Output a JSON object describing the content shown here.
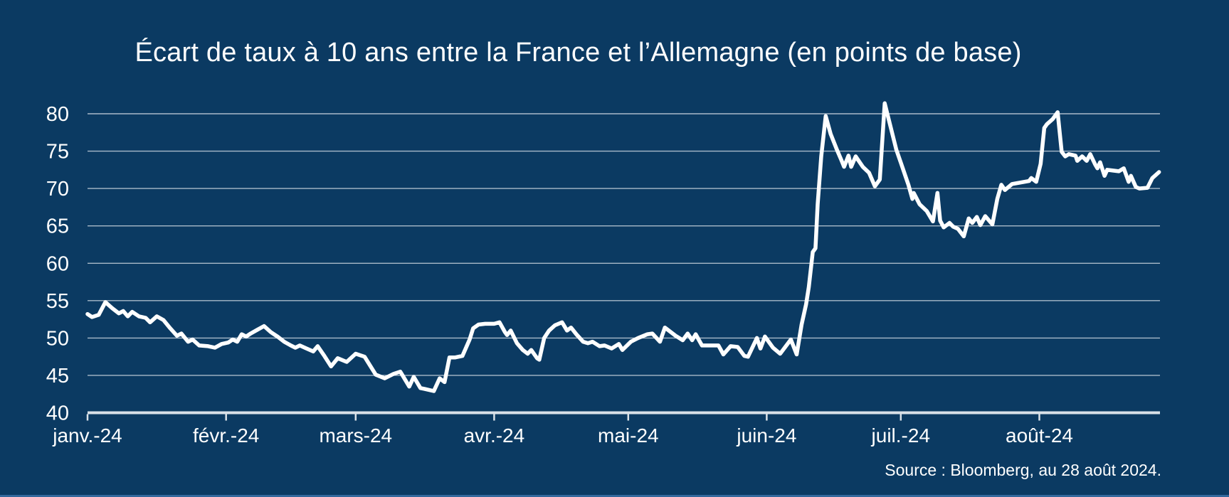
{
  "title": "Écart de taux à 10 ans entre la France et l’Allemagne (en points de base)",
  "source": "Source : Bloomberg, au 28 août 2024.",
  "colors": {
    "background": "#0b3a62",
    "line": "#ffffff",
    "gridline": "#a9bac9",
    "axis": "#d9e1e8",
    "text": "#ffffff",
    "bottom_strip": "#33689c"
  },
  "chart_data": {
    "type": "line",
    "title": "Écart de taux à 10 ans entre la France et l’Allemagne (en points de base)",
    "xlabel": "",
    "ylabel": "points de base",
    "grid": true,
    "legend": "none",
    "x_axis": {
      "tick_labels": [
        "janv.-24",
        "févr.-24",
        "mars-24",
        "avr.-24",
        "mai-24",
        "juin-24",
        "juil.-24",
        "août-24"
      ],
      "tick_day_offsets": [
        0,
        31,
        60,
        91,
        121,
        152,
        182,
        213
      ],
      "range_days": [
        0,
        240
      ]
    },
    "y_axis": {
      "ticks": [
        40,
        45,
        50,
        55,
        60,
        65,
        70,
        75,
        80
      ],
      "range": [
        40,
        80
      ]
    },
    "series": [
      {
        "color": "#ffffff",
        "points": [
          [
            0,
            53.2
          ],
          [
            1,
            52.8
          ],
          [
            2.5,
            53.1
          ],
          [
            4,
            54.8
          ],
          [
            5.5,
            54.0
          ],
          [
            7,
            53.3
          ],
          [
            8,
            53.6
          ],
          [
            9,
            52.9
          ],
          [
            10,
            53.5
          ],
          [
            11.5,
            52.9
          ],
          [
            13,
            52.7
          ],
          [
            14,
            52.1
          ],
          [
            15.5,
            52.9
          ],
          [
            17,
            52.4
          ],
          [
            18.5,
            51.3
          ],
          [
            20,
            50.3
          ],
          [
            21,
            50.6
          ],
          [
            22.5,
            49.5
          ],
          [
            23.5,
            49.8
          ],
          [
            25,
            49.0
          ],
          [
            27,
            48.9
          ],
          [
            28.5,
            48.7
          ],
          [
            30,
            49.2
          ],
          [
            31.5,
            49.4
          ],
          [
            32.5,
            49.8
          ],
          [
            33.5,
            49.5
          ],
          [
            34.5,
            50.5
          ],
          [
            35.5,
            50.2
          ],
          [
            36.5,
            50.6
          ],
          [
            38,
            51.1
          ],
          [
            39.5,
            51.6
          ],
          [
            41,
            50.8
          ],
          [
            42.5,
            50.2
          ],
          [
            44,
            49.5
          ],
          [
            45.5,
            49.0
          ],
          [
            46.5,
            48.7
          ],
          [
            47.5,
            49.0
          ],
          [
            49,
            48.6
          ],
          [
            50.5,
            48.2
          ],
          [
            51.5,
            48.9
          ],
          [
            53,
            47.6
          ],
          [
            54.5,
            46.2
          ],
          [
            56,
            47.3
          ],
          [
            58,
            46.8
          ],
          [
            60,
            47.9
          ],
          [
            62,
            47.5
          ],
          [
            64.5,
            45.1
          ],
          [
            66.5,
            44.6
          ],
          [
            68.5,
            45.2
          ],
          [
            70,
            45.5
          ],
          [
            72,
            43.5
          ],
          [
            73,
            44.8
          ],
          [
            74.5,
            43.3
          ],
          [
            75.4,
            43.2
          ],
          [
            77.5,
            42.9
          ],
          [
            78.8,
            44.6
          ],
          [
            79.9,
            44.1
          ],
          [
            81,
            47.4
          ],
          [
            82.3,
            47.4
          ],
          [
            83.9,
            47.6
          ],
          [
            85.5,
            49.8
          ],
          [
            86.3,
            51.3
          ],
          [
            87.5,
            51.8
          ],
          [
            89,
            51.9
          ],
          [
            91,
            51.9
          ],
          [
            92.2,
            52.1
          ],
          [
            93.4,
            50.8
          ],
          [
            93.9,
            50.4
          ],
          [
            94.7,
            51.0
          ],
          [
            96.1,
            49.3
          ],
          [
            97.4,
            48.4
          ],
          [
            98.5,
            47.9
          ],
          [
            99.3,
            48.4
          ],
          [
            100.6,
            47.3
          ],
          [
            101.1,
            47.1
          ],
          [
            102.2,
            50.0
          ],
          [
            103.3,
            51.0
          ],
          [
            104.6,
            51.7
          ],
          [
            106.2,
            52.1
          ],
          [
            107.3,
            51.0
          ],
          [
            108.2,
            51.4
          ],
          [
            109.4,
            50.5
          ],
          [
            110.9,
            49.5
          ],
          [
            112,
            49.3
          ],
          [
            113,
            49.5
          ],
          [
            114.6,
            48.9
          ],
          [
            115.7,
            49.0
          ],
          [
            117.3,
            48.6
          ],
          [
            118.9,
            49.2
          ],
          [
            119.7,
            48.4
          ],
          [
            121.6,
            49.5
          ],
          [
            123.2,
            50.0
          ],
          [
            125.3,
            50.5
          ],
          [
            126.4,
            50.6
          ],
          [
            128.1,
            49.5
          ],
          [
            129.2,
            51.4
          ],
          [
            131.6,
            50.3
          ],
          [
            133.2,
            49.7
          ],
          [
            134.3,
            50.6
          ],
          [
            135.3,
            49.7
          ],
          [
            136.1,
            50.5
          ],
          [
            137.5,
            49.0
          ],
          [
            141.2,
            49.0
          ],
          [
            142.3,
            47.8
          ],
          [
            143.9,
            48.9
          ],
          [
            145.5,
            48.8
          ],
          [
            147,
            47.6
          ],
          [
            147.8,
            47.5
          ],
          [
            149.8,
            50.0
          ],
          [
            150.6,
            48.6
          ],
          [
            151.6,
            50.2
          ],
          [
            153.4,
            48.7
          ],
          [
            155,
            47.9
          ],
          [
            157.4,
            49.8
          ],
          [
            158.7,
            47.8
          ],
          [
            159.8,
            51.8
          ],
          [
            160.8,
            54.5
          ],
          [
            161.4,
            56.8
          ],
          [
            161.9,
            59.4
          ],
          [
            162.3,
            61.5
          ],
          [
            162.9,
            62.0
          ],
          [
            163.4,
            67.9
          ],
          [
            164.2,
            74.3
          ],
          [
            165.2,
            79.7
          ],
          [
            166.3,
            77.3
          ],
          [
            167.7,
            75.2
          ],
          [
            168.7,
            73.8
          ],
          [
            169.3,
            72.9
          ],
          [
            170.3,
            74.4
          ],
          [
            170.9,
            72.9
          ],
          [
            171.9,
            74.3
          ],
          [
            173.5,
            72.9
          ],
          [
            174.9,
            72.1
          ],
          [
            176.2,
            70.3
          ],
          [
            177.3,
            71.2
          ],
          [
            178.4,
            81.4
          ],
          [
            180.2,
            77.1
          ],
          [
            181,
            75.2
          ],
          [
            182.1,
            73.3
          ],
          [
            183.7,
            70.5
          ],
          [
            184.6,
            68.6
          ],
          [
            184.9,
            69.4
          ],
          [
            186.2,
            67.9
          ],
          [
            187.8,
            67.0
          ],
          [
            189.2,
            65.6
          ],
          [
            190.2,
            69.4
          ],
          [
            190.8,
            65.7
          ],
          [
            191.6,
            64.8
          ],
          [
            192.9,
            65.4
          ],
          [
            193.7,
            64.9
          ],
          [
            194.8,
            64.6
          ],
          [
            196.1,
            63.6
          ],
          [
            197.2,
            66.0
          ],
          [
            198,
            65.4
          ],
          [
            199,
            66.2
          ],
          [
            199.8,
            65.1
          ],
          [
            200.9,
            66.3
          ],
          [
            202.5,
            65.2
          ],
          [
            203.6,
            68.6
          ],
          [
            204.5,
            70.5
          ],
          [
            205.3,
            69.8
          ],
          [
            206.9,
            70.6
          ],
          [
            208.8,
            70.8
          ],
          [
            210.7,
            71.0
          ],
          [
            211.2,
            71.4
          ],
          [
            212.3,
            70.9
          ],
          [
            213.3,
            73.3
          ],
          [
            214.1,
            78.1
          ],
          [
            214.7,
            78.6
          ],
          [
            216,
            79.3
          ],
          [
            217.1,
            80.2
          ],
          [
            218,
            74.9
          ],
          [
            218.8,
            74.3
          ],
          [
            219.6,
            74.6
          ],
          [
            221.1,
            74.4
          ],
          [
            221.5,
            73.7
          ],
          [
            222.6,
            74.3
          ],
          [
            223.6,
            73.7
          ],
          [
            224.4,
            74.6
          ],
          [
            225.5,
            73.2
          ],
          [
            226,
            72.7
          ],
          [
            226.6,
            73.5
          ],
          [
            227.6,
            71.7
          ],
          [
            228.2,
            72.5
          ],
          [
            229.5,
            72.4
          ],
          [
            230.8,
            72.3
          ],
          [
            231.9,
            72.7
          ],
          [
            233,
            70.9
          ],
          [
            233.5,
            71.7
          ],
          [
            234.6,
            70.2
          ],
          [
            235.4,
            70.0
          ],
          [
            237.2,
            70.1
          ],
          [
            238.3,
            71.4
          ],
          [
            239.8,
            72.2
          ]
        ]
      }
    ]
  }
}
